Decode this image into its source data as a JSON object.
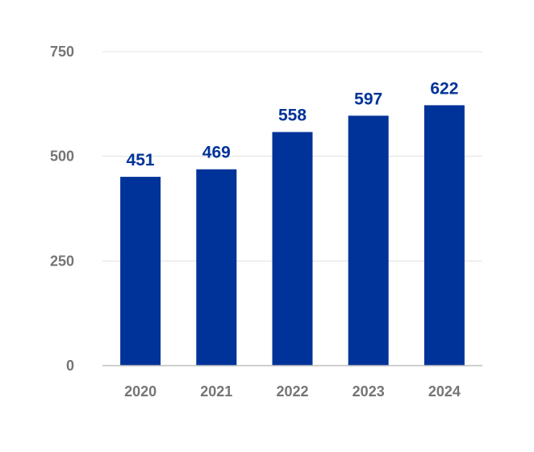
{
  "chart_data": {
    "type": "bar",
    "categories": [
      "2020",
      "2021",
      "2022",
      "2023",
      "2024"
    ],
    "values": [
      451,
      469,
      558,
      597,
      622
    ],
    "title": "",
    "xlabel": "",
    "ylabel": "",
    "ylim": [
      0,
      750
    ],
    "yticks": [
      0,
      250,
      500,
      750
    ],
    "grid": true,
    "data_labels": true,
    "colors": {
      "bar": "#003399",
      "label": "#003399",
      "tick": "#757575",
      "grid": "#e0e0e0",
      "axis": "#bdbdbd"
    }
  }
}
